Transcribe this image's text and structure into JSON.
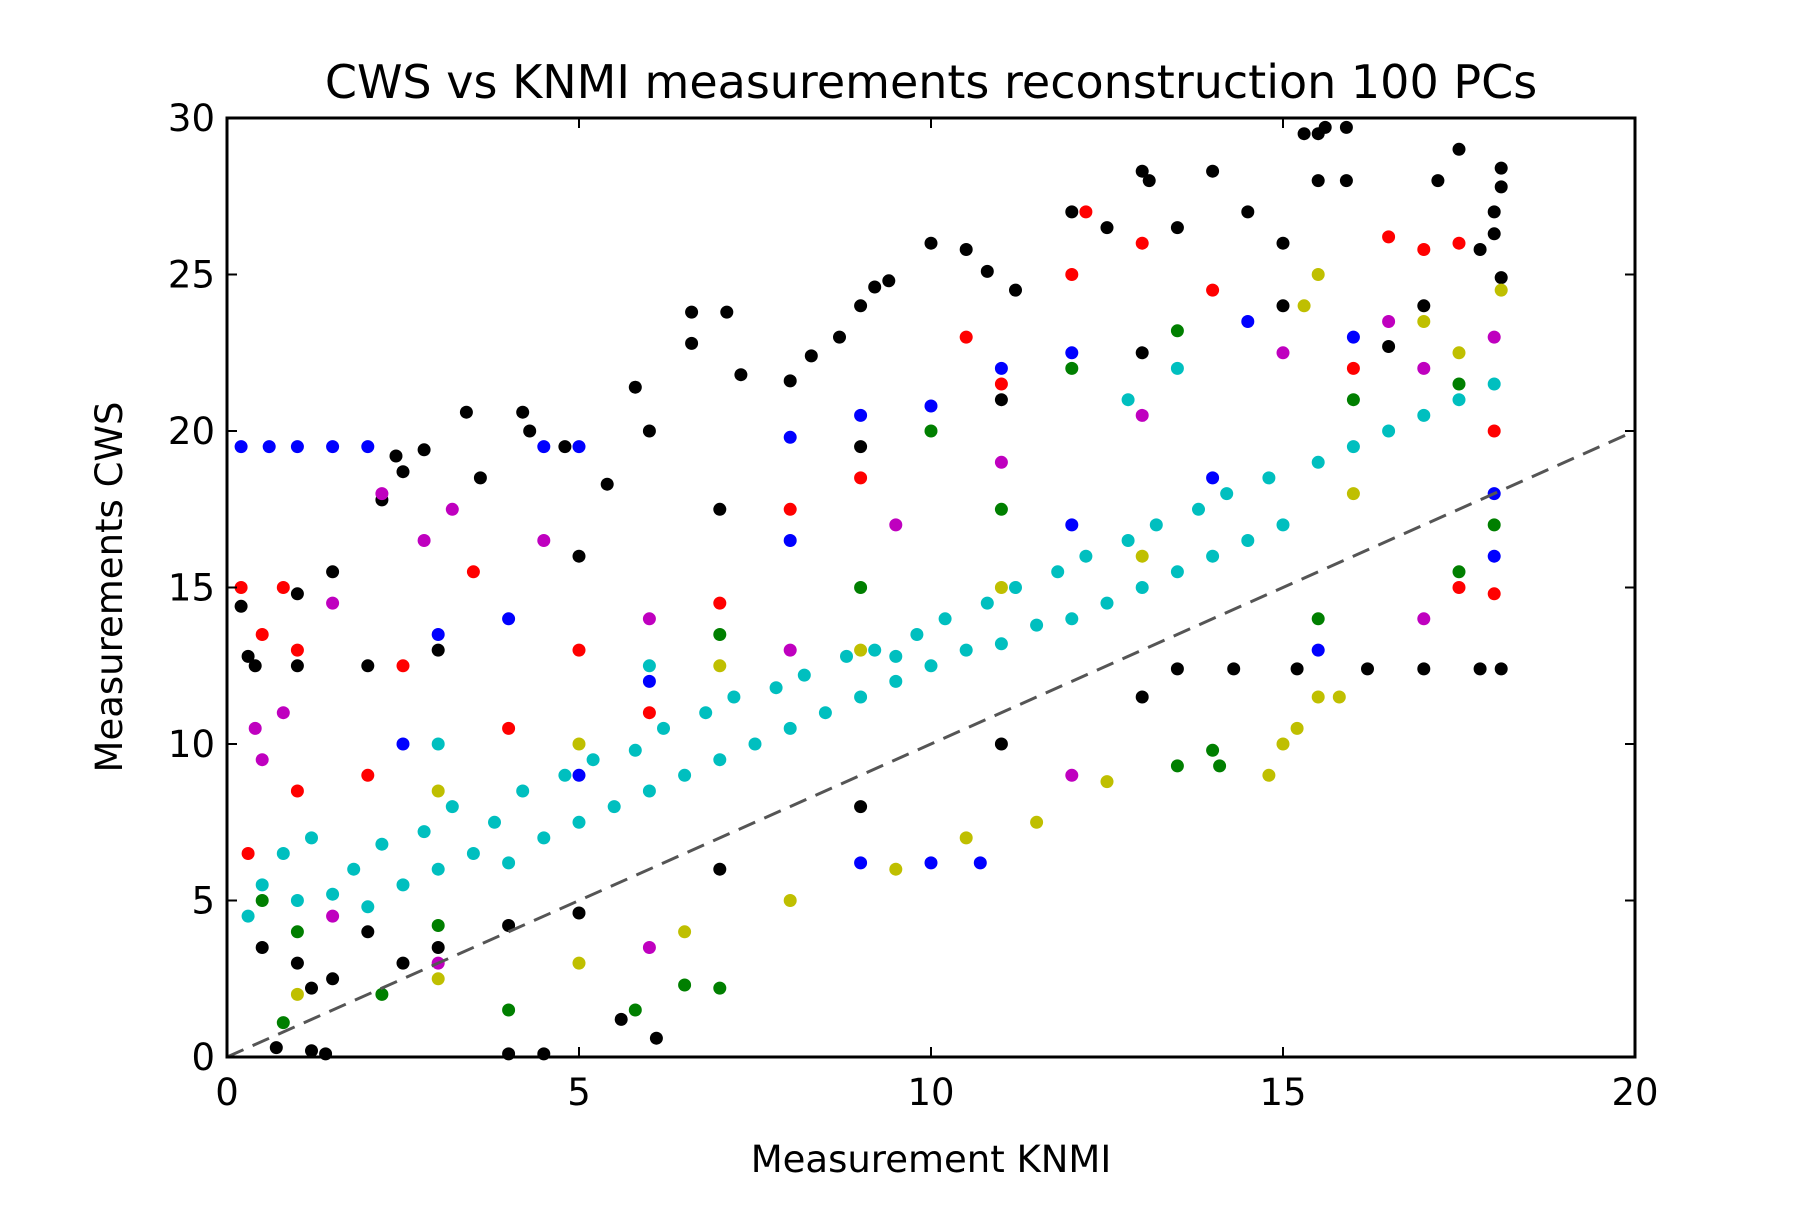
{
  "chart_data": {
    "type": "scatter",
    "title": "CWS vs KNMI measurements reconstruction 100 PCs",
    "xlabel": "Measurement KNMI",
    "ylabel": "Measurements CWS",
    "xlim": [
      0,
      20
    ],
    "ylim": [
      0,
      30
    ],
    "xticks": [
      "0",
      "5",
      "10",
      "15",
      "20"
    ],
    "yticks": [
      "0",
      "5",
      "10",
      "15",
      "20",
      "25",
      "30"
    ],
    "grid": false,
    "legend": "none",
    "reference_line": {
      "style": "dashed",
      "color": "#555555",
      "x": [
        0,
        20
      ],
      "y": [
        0,
        20
      ]
    },
    "series": [
      {
        "color": "#000000",
        "points": [
          [
            0.7,
            0.3
          ],
          [
            1.2,
            0.2
          ],
          [
            1.4,
            0.1
          ],
          [
            4.0,
            0.1
          ],
          [
            4.5,
            0.1
          ],
          [
            6.1,
            0.6
          ],
          [
            5.6,
            1.2
          ],
          [
            0.3,
            12.8
          ],
          [
            0.2,
            14.4
          ],
          [
            0.4,
            12.5
          ],
          [
            1.0,
            14.8
          ],
          [
            1.5,
            15.5
          ],
          [
            2.2,
            17.8
          ],
          [
            2.4,
            19.2
          ],
          [
            2.5,
            18.7
          ],
          [
            2.8,
            19.4
          ],
          [
            3.4,
            20.6
          ],
          [
            3.6,
            18.5
          ],
          [
            4.2,
            20.6
          ],
          [
            4.3,
            20.0
          ],
          [
            4.8,
            19.5
          ],
          [
            5.4,
            18.3
          ],
          [
            5.8,
            21.4
          ],
          [
            6.0,
            20.0
          ],
          [
            6.6,
            22.8
          ],
          [
            6.6,
            23.8
          ],
          [
            7.1,
            23.8
          ],
          [
            7.3,
            21.8
          ],
          [
            8.0,
            21.6
          ],
          [
            8.3,
            22.4
          ],
          [
            8.7,
            23.0
          ],
          [
            9.0,
            24.0
          ],
          [
            9.2,
            24.6
          ],
          [
            9.4,
            24.8
          ],
          [
            10.0,
            26.0
          ],
          [
            10.5,
            25.8
          ],
          [
            10.8,
            25.1
          ],
          [
            11.2,
            24.5
          ],
          [
            12.0,
            27.0
          ],
          [
            12.5,
            26.5
          ],
          [
            13.0,
            28.3
          ],
          [
            13.1,
            28.0
          ],
          [
            13.5,
            26.5
          ],
          [
            14.0,
            28.3
          ],
          [
            14.5,
            27.0
          ],
          [
            15.0,
            26.0
          ],
          [
            15.3,
            29.5
          ],
          [
            15.5,
            29.5
          ],
          [
            15.5,
            28.0
          ],
          [
            15.6,
            29.7
          ],
          [
            15.9,
            29.7
          ],
          [
            15.9,
            28.0
          ],
          [
            16.5,
            22.7
          ],
          [
            17.0,
            24.0
          ],
          [
            17.2,
            28.0
          ],
          [
            17.5,
            29.0
          ],
          [
            17.8,
            25.8
          ],
          [
            18.0,
            27.0
          ],
          [
            18.0,
            26.3
          ],
          [
            18.1,
            27.8
          ],
          [
            18.1,
            28.4
          ],
          [
            18.1,
            24.9
          ],
          [
            15.2,
            12.4
          ],
          [
            16.2,
            12.4
          ],
          [
            17.0,
            12.4
          ],
          [
            17.8,
            12.4
          ],
          [
            18.1,
            12.4
          ],
          [
            14.3,
            12.4
          ],
          [
            13.5,
            12.4
          ],
          [
            2.0,
            12.5
          ],
          [
            1.0,
            12.5
          ],
          [
            3.0,
            13.0
          ],
          [
            5.0,
            16.0
          ],
          [
            7.0,
            17.5
          ],
          [
            9.0,
            19.5
          ],
          [
            11.0,
            21.0
          ],
          [
            13.0,
            22.5
          ],
          [
            15.0,
            24.0
          ],
          [
            2.0,
            4.0
          ],
          [
            3.0,
            3.5
          ],
          [
            4.0,
            4.2
          ],
          [
            5.0,
            4.6
          ],
          [
            1.0,
            3.0
          ],
          [
            7.0,
            6.0
          ],
          [
            9.0,
            8.0
          ],
          [
            11.0,
            10.0
          ],
          [
            13.0,
            11.5
          ],
          [
            1.5,
            2.5
          ],
          [
            0.5,
            3.5
          ],
          [
            1.2,
            2.2
          ],
          [
            2.5,
            3.0
          ]
        ]
      },
      {
        "color": "#0000ff",
        "points": [
          [
            0.2,
            19.5
          ],
          [
            0.6,
            19.5
          ],
          [
            1.0,
            19.5
          ],
          [
            1.5,
            19.5
          ],
          [
            2.0,
            19.5
          ],
          [
            4.5,
            19.5
          ],
          [
            5.0,
            19.5
          ],
          [
            8.0,
            19.8
          ],
          [
            9.0,
            20.5
          ],
          [
            10.0,
            20.8
          ],
          [
            11.0,
            22.0
          ],
          [
            12.0,
            22.5
          ],
          [
            14.5,
            23.5
          ],
          [
            16.0,
            23.0
          ],
          [
            18.0,
            18.0
          ],
          [
            18.0,
            16.0
          ],
          [
            9.0,
            6.2
          ],
          [
            10.0,
            6.2
          ],
          [
            10.7,
            6.2
          ],
          [
            3.0,
            13.5
          ],
          [
            4.0,
            14.0
          ],
          [
            6.0,
            12.0
          ],
          [
            2.5,
            10.0
          ],
          [
            5.0,
            9.0
          ],
          [
            15.5,
            13.0
          ],
          [
            8.0,
            16.5
          ],
          [
            12.0,
            17.0
          ],
          [
            14.0,
            18.5
          ]
        ]
      },
      {
        "color": "#ff0000",
        "points": [
          [
            0.2,
            15.0
          ],
          [
            0.5,
            13.5
          ],
          [
            0.8,
            15.0
          ],
          [
            1.0,
            13.0
          ],
          [
            2.5,
            12.5
          ],
          [
            3.5,
            15.5
          ],
          [
            5.0,
            13.0
          ],
          [
            6.0,
            11.0
          ],
          [
            8.0,
            17.5
          ],
          [
            9.0,
            18.5
          ],
          [
            11.0,
            21.5
          ],
          [
            12.0,
            25.0
          ],
          [
            12.2,
            27.0
          ],
          [
            13.0,
            26.0
          ],
          [
            14.0,
            24.5
          ],
          [
            16.5,
            26.2
          ],
          [
            17.0,
            25.8
          ],
          [
            17.5,
            26.0
          ],
          [
            18.0,
            14.8
          ],
          [
            17.5,
            15.0
          ],
          [
            18.0,
            20.0
          ],
          [
            16.0,
            22.0
          ],
          [
            10.5,
            23.0
          ],
          [
            7.0,
            14.5
          ],
          [
            4.0,
            10.5
          ],
          [
            2.0,
            9.0
          ],
          [
            1.0,
            8.5
          ],
          [
            0.3,
            6.5
          ]
        ]
      },
      {
        "color": "#bf00bf",
        "points": [
          [
            0.4,
            10.5
          ],
          [
            0.8,
            11.0
          ],
          [
            1.5,
            14.5
          ],
          [
            2.2,
            18.0
          ],
          [
            3.2,
            17.5
          ],
          [
            2.8,
            16.5
          ],
          [
            4.5,
            16.5
          ],
          [
            6.0,
            14.0
          ],
          [
            8.0,
            13.0
          ],
          [
            9.5,
            17.0
          ],
          [
            11.0,
            19.0
          ],
          [
            13.0,
            20.5
          ],
          [
            15.0,
            22.5
          ],
          [
            16.5,
            23.5
          ],
          [
            17.0,
            22.0
          ],
          [
            18.0,
            23.0
          ],
          [
            17.0,
            14.0
          ],
          [
            12.0,
            9.0
          ],
          [
            6.0,
            3.5
          ],
          [
            3.0,
            3.0
          ],
          [
            1.5,
            4.5
          ],
          [
            0.5,
            9.5
          ]
        ]
      },
      {
        "color": "#007f00",
        "points": [
          [
            0.8,
            1.1
          ],
          [
            2.2,
            2.0
          ],
          [
            4.0,
            1.5
          ],
          [
            5.8,
            1.5
          ],
          [
            6.5,
            2.3
          ],
          [
            7.0,
            2.2
          ],
          [
            13.5,
            9.3
          ],
          [
            14.0,
            9.8
          ],
          [
            14.1,
            9.3
          ],
          [
            10.0,
            20.0
          ],
          [
            12.0,
            22.0
          ],
          [
            13.5,
            23.2
          ],
          [
            16.0,
            21.0
          ],
          [
            17.5,
            21.5
          ],
          [
            18.0,
            17.0
          ],
          [
            17.5,
            15.5
          ],
          [
            15.5,
            14.0
          ],
          [
            11.0,
            17.5
          ],
          [
            9.0,
            15.0
          ],
          [
            7.0,
            13.5
          ],
          [
            0.5,
            5.0
          ],
          [
            1.0,
            4.0
          ],
          [
            3.0,
            4.2
          ]
        ]
      },
      {
        "color": "#bfbf00",
        "points": [
          [
            14.8,
            9.0
          ],
          [
            15.0,
            10.0
          ],
          [
            15.2,
            10.5
          ],
          [
            15.5,
            11.5
          ],
          [
            15.8,
            11.5
          ],
          [
            12.5,
            8.8
          ],
          [
            11.5,
            7.5
          ],
          [
            10.5,
            7.0
          ],
          [
            9.5,
            6.0
          ],
          [
            8.0,
            5.0
          ],
          [
            6.5,
            4.0
          ],
          [
            5.0,
            3.0
          ],
          [
            3.0,
            2.5
          ],
          [
            1.0,
            2.0
          ],
          [
            15.5,
            25.0
          ],
          [
            15.3,
            24.0
          ],
          [
            17.0,
            23.5
          ],
          [
            17.5,
            22.5
          ],
          [
            18.1,
            24.5
          ],
          [
            16.0,
            18.0
          ],
          [
            13.0,
            16.0
          ],
          [
            11.0,
            15.0
          ],
          [
            9.0,
            13.0
          ],
          [
            7.0,
            12.5
          ],
          [
            5.0,
            10.0
          ],
          [
            3.0,
            8.5
          ]
        ]
      },
      {
        "color": "#00bfbf",
        "points": [
          [
            0.3,
            4.5
          ],
          [
            0.5,
            5.5
          ],
          [
            0.8,
            6.5
          ],
          [
            1.0,
            5.0
          ],
          [
            1.2,
            7.0
          ],
          [
            1.5,
            5.2
          ],
          [
            1.8,
            6.0
          ],
          [
            2.0,
            4.8
          ],
          [
            2.2,
            6.8
          ],
          [
            2.5,
            5.5
          ],
          [
            2.8,
            7.2
          ],
          [
            3.0,
            6.0
          ],
          [
            3.2,
            8.0
          ],
          [
            3.5,
            6.5
          ],
          [
            3.8,
            7.5
          ],
          [
            4.0,
            6.2
          ],
          [
            4.2,
            8.5
          ],
          [
            4.5,
            7.0
          ],
          [
            4.8,
            9.0
          ],
          [
            5.0,
            7.5
          ],
          [
            5.2,
            9.5
          ],
          [
            5.5,
            8.0
          ],
          [
            5.8,
            9.8
          ],
          [
            6.0,
            8.5
          ],
          [
            6.2,
            10.5
          ],
          [
            6.5,
            9.0
          ],
          [
            6.8,
            11.0
          ],
          [
            7.0,
            9.5
          ],
          [
            7.2,
            11.5
          ],
          [
            7.5,
            10.0
          ],
          [
            7.8,
            11.8
          ],
          [
            8.0,
            10.5
          ],
          [
            8.2,
            12.2
          ],
          [
            8.5,
            11.0
          ],
          [
            8.8,
            12.8
          ],
          [
            9.0,
            11.5
          ],
          [
            9.2,
            13.0
          ],
          [
            9.5,
            12.0
          ],
          [
            9.8,
            13.5
          ],
          [
            10.0,
            12.5
          ],
          [
            10.2,
            14.0
          ],
          [
            10.5,
            13.0
          ],
          [
            10.8,
            14.5
          ],
          [
            11.0,
            13.2
          ],
          [
            11.2,
            15.0
          ],
          [
            11.5,
            13.8
          ],
          [
            11.8,
            15.5
          ],
          [
            12.0,
            14.0
          ],
          [
            12.2,
            16.0
          ],
          [
            12.5,
            14.5
          ],
          [
            12.8,
            16.5
          ],
          [
            13.0,
            15.0
          ],
          [
            13.2,
            17.0
          ],
          [
            13.5,
            15.5
          ],
          [
            13.8,
            17.5
          ],
          [
            14.0,
            16.0
          ],
          [
            14.2,
            18.0
          ],
          [
            14.5,
            16.5
          ],
          [
            14.8,
            18.5
          ],
          [
            15.0,
            17.0
          ],
          [
            15.5,
            19.0
          ],
          [
            16.0,
            19.5
          ],
          [
            16.5,
            20.0
          ],
          [
            17.0,
            20.5
          ],
          [
            17.5,
            21.0
          ],
          [
            18.0,
            21.5
          ],
          [
            13.5,
            22.0
          ],
          [
            12.8,
            21.0
          ],
          [
            9.5,
            12.8
          ],
          [
            6.0,
            12.5
          ],
          [
            3.0,
            10.0
          ]
        ]
      }
    ]
  }
}
